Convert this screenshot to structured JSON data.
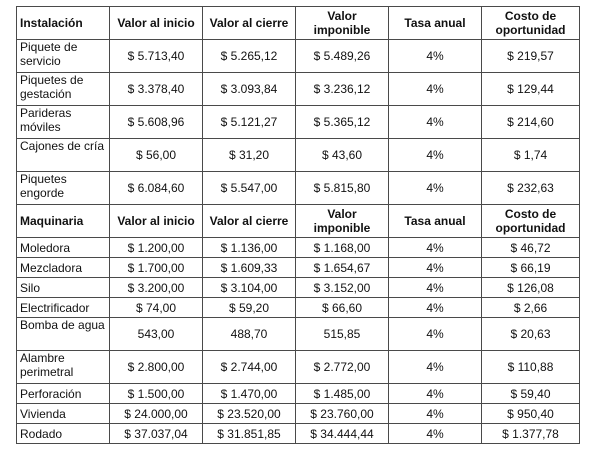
{
  "sections": [
    {
      "headers": [
        "Instalación",
        "Valor al inicio",
        "Valor al cierre",
        "Valor imponible",
        "Tasa anual",
        "Costo de oportunidad"
      ],
      "rows": [
        {
          "name": "Piquete de servicio",
          "cells": [
            "$ 5.713,40",
            "$ 5.265,12",
            "$ 5.489,26",
            "4%",
            "$ 219,57"
          ]
        },
        {
          "name": "Piquetes de gestación",
          "cells": [
            "$ 3.378,40",
            "$ 3.093,84",
            "$ 3.236,12",
            "4%",
            "$ 129,44"
          ]
        },
        {
          "name": "Parideras móviles",
          "cells": [
            "$ 5.608,96",
            "$ 5.121,27",
            "$ 5.365,12",
            "4%",
            "$ 214,60"
          ]
        },
        {
          "name": "Cajones de cría",
          "cells": [
            "$ 56,00",
            "$ 31,20",
            "$ 43,60",
            "4%",
            "$ 1,74"
          ]
        },
        {
          "name": "Piquetes engorde",
          "cells": [
            "$ 6.084,60",
            "$ 5.547,00",
            "$ 5.815,80",
            "4%",
            "$ 232,63"
          ]
        }
      ]
    },
    {
      "headers": [
        "Maquinaria",
        "Valor al inicio",
        "Valor al cierre",
        "Valor imponible",
        "Tasa anual",
        "Costo de oportunidad"
      ],
      "rows": [
        {
          "name": "Moledora",
          "cells": [
            "$ 1.200,00",
            "$ 1.136,00",
            "$ 1.168,00",
            "4%",
            "$ 46,72"
          ]
        },
        {
          "name": "Mezcladora",
          "cells": [
            "$ 1.700,00",
            "$ 1.609,33",
            "$ 1.654,67",
            "4%",
            "$ 66,19"
          ]
        },
        {
          "name": "Silo",
          "cells": [
            "$ 3.200,00",
            "$ 3.104,00",
            "$ 3.152,00",
            "4%",
            "$ 126,08"
          ]
        },
        {
          "name": "Electrificador",
          "cells": [
            "$ 74,00",
            "$ 59,20",
            "$ 66,60",
            "4%",
            "$ 2,66"
          ]
        },
        {
          "name": "Bomba de agua",
          "cells": [
            "543,00",
            "488,70",
            "515,85",
            "4%",
            "$ 20,63"
          ]
        },
        {
          "name": "Alambre perimetral",
          "cells": [
            "$ 2.800,00",
            "$ 2.744,00",
            "$ 2.772,00",
            "4%",
            "$ 110,88"
          ]
        },
        {
          "name": "Perforación",
          "cells": [
            "$ 1.500,00",
            "$ 1.470,00",
            "$ 1.485,00",
            "4%",
            "$ 59,40"
          ]
        },
        {
          "name": "Vivienda",
          "cells": [
            "$ 24.000,00",
            "$ 23.520,00",
            "$ 23.760,00",
            "4%",
            "$ 950,40"
          ]
        },
        {
          "name": "Rodado",
          "cells": [
            "$ 37.037,04",
            "$ 31.851,85",
            "$ 34.444,44",
            "4%",
            "$ 1.377,78"
          ]
        }
      ]
    }
  ]
}
